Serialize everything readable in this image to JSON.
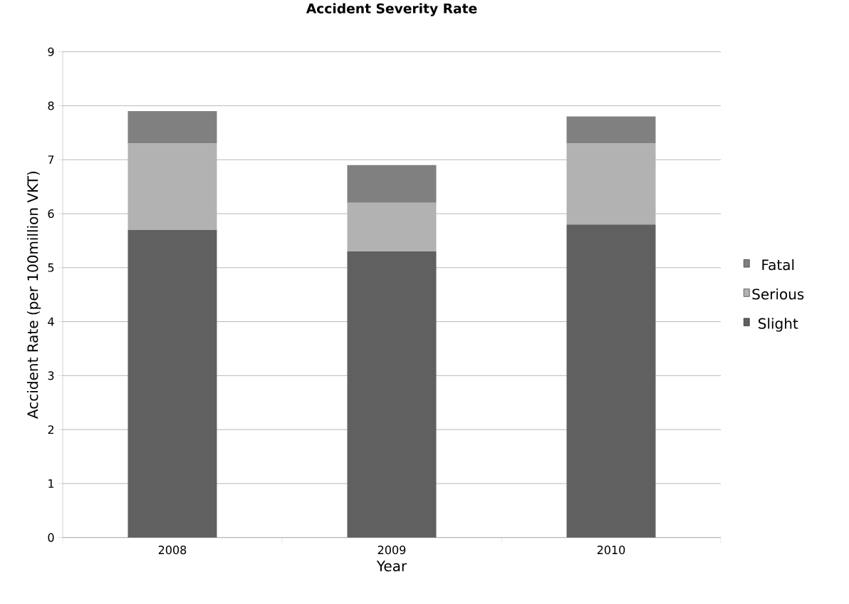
{
  "chart_data": {
    "type": "bar",
    "title": "Accident Severity Rate",
    "xlabel": "Year",
    "ylabel": "Accident Rate (per 100million VKT)",
    "categories": [
      "2008",
      "2009",
      "2010"
    ],
    "stacked": true,
    "series": [
      {
        "name": "Slight",
        "color": "#606060",
        "values": [
          5.7,
          5.3,
          5.8
        ]
      },
      {
        "name": "Serious",
        "color": "#b2b2b2",
        "values": [
          1.6,
          0.9,
          1.5
        ]
      },
      {
        "name": "Fatal",
        "color": "#808080",
        "values": [
          0.6,
          0.7,
          0.5
        ]
      }
    ],
    "ylim": [
      0,
      9
    ],
    "yticks": [
      0,
      1,
      2,
      3,
      4,
      5,
      6,
      7,
      8,
      9
    ],
    "grid": "y",
    "legend": "right"
  }
}
